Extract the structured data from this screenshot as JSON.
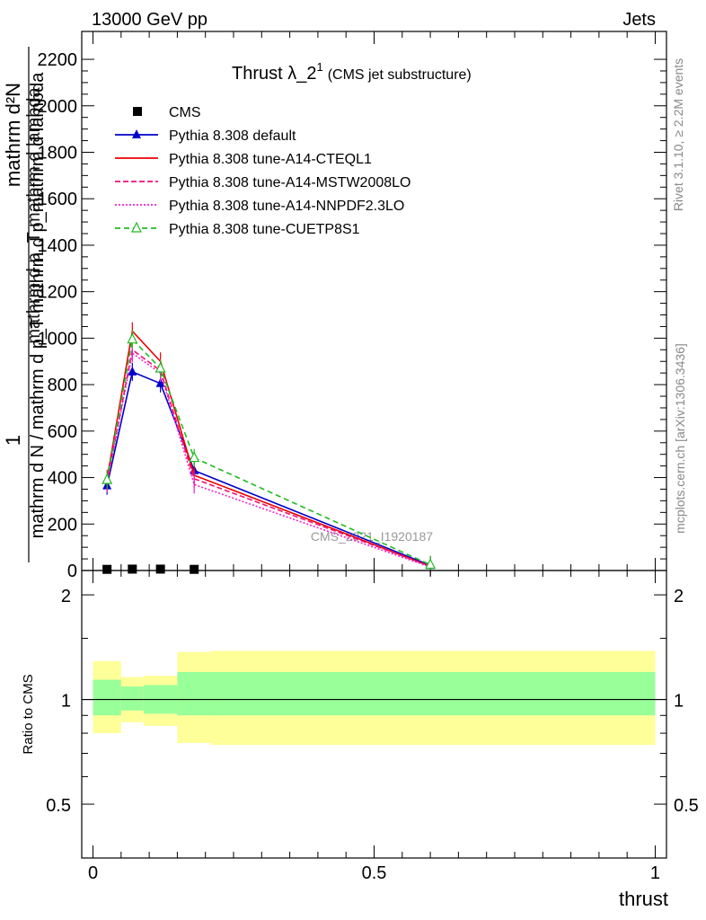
{
  "header": {
    "energy": "13000 GeV pp",
    "process": "Jets"
  },
  "side": {
    "rivet": "Rivet 3.1.10, ≥ 2.2M events",
    "mcplots": "mcplots.cern.ch [arXiv:1306.3436]"
  },
  "chart_data": {
    "type": "line",
    "title_main": "Thrust λ_2",
    "title_sup": "1",
    "title_sub": "(CMS jet substructure)",
    "watermark": "CMS_2021_I1920187",
    "ylabel_top": "1",
    "ylabel_num": "mathrm d²N",
    "ylabel_den": "mathrm d N / mathrm d p_T mathrm d p_mathrm d lambda",
    "ylabel_den_alt": "mathrm d p_T mathrm d lambda",
    "ylabel_ratio": "Ratio to CMS",
    "xlabel": "thrust",
    "xlim": [
      -0.02,
      1.02
    ],
    "ylim": [
      0,
      2320
    ],
    "ratio_ylim": [
      0.35,
      2.35
    ],
    "main_yticks": [
      0,
      200,
      400,
      600,
      800,
      1000,
      1200,
      1400,
      1600,
      1800,
      2000,
      2200
    ],
    "main_ytick_labels": [
      "0",
      "200",
      "400",
      "600",
      "800",
      "1000",
      "1200",
      "1400",
      "1600",
      "1800",
      "2000",
      "2200"
    ],
    "ratio_yticks": [
      0.5,
      1,
      2
    ],
    "ratio_ytick_labels": [
      "0.5",
      "1",
      "2"
    ],
    "xticks": [
      0,
      0.5,
      1
    ],
    "xtick_labels": [
      "0",
      "0.5",
      "1"
    ],
    "data": {
      "name": "CMS",
      "x": [
        0.025,
        0.07,
        0.12,
        0.18
      ],
      "y": [
        5,
        6,
        6,
        5
      ]
    },
    "series": [
      {
        "name": "Pythia 8.308 default",
        "color": "#0000cc",
        "dash": "",
        "marker": "triangle-filled",
        "x": [
          0.025,
          0.07,
          0.12,
          0.18,
          0.6
        ],
        "y": [
          365,
          855,
          805,
          430,
          22
        ]
      },
      {
        "name": "Pythia 8.308 tune-A14-CTEQL1",
        "color": "#ee0000",
        "dash": "",
        "marker": "none",
        "x": [
          0.025,
          0.07,
          0.12,
          0.18,
          0.6
        ],
        "y": [
          395,
          1030,
          900,
          410,
          18
        ]
      },
      {
        "name": "Pythia 8.308 tune-A14-MSTW2008LO",
        "color": "#ee1177",
        "dash": "6,3",
        "marker": "none",
        "x": [
          0.025,
          0.07,
          0.12,
          0.18,
          0.6
        ],
        "y": [
          380,
          950,
          860,
          395,
          18
        ]
      },
      {
        "name": "Pythia 8.308 tune-A14-NNPDF2.3LO",
        "color": "#ee22cc",
        "dash": "2,2",
        "marker": "none",
        "x": [
          0.025,
          0.07,
          0.12,
          0.18,
          0.6
        ],
        "y": [
          375,
          935,
          850,
          370,
          15
        ]
      },
      {
        "name": "Pythia 8.308 tune-CUETP8S1",
        "color": "#22bb22",
        "dash": "6,4",
        "marker": "triangle-open",
        "x": [
          0.025,
          0.07,
          0.12,
          0.18,
          0.6
        ],
        "y": [
          390,
          995,
          870,
          485,
          25
        ]
      }
    ],
    "ratio_bands": [
      {
        "xlo": 0.0,
        "xhi": 0.05,
        "inner": [
          0.9,
          1.14
        ],
        "outer": [
          0.8,
          1.29
        ]
      },
      {
        "xlo": 0.05,
        "xhi": 0.09,
        "inner": [
          0.93,
          1.09
        ],
        "outer": [
          0.86,
          1.16
        ]
      },
      {
        "xlo": 0.09,
        "xhi": 0.15,
        "inner": [
          0.91,
          1.1
        ],
        "outer": [
          0.84,
          1.17
        ]
      },
      {
        "xlo": 0.15,
        "xhi": 0.21,
        "inner": [
          0.9,
          1.2
        ],
        "outer": [
          0.75,
          1.37
        ]
      },
      {
        "xlo": 0.21,
        "xhi": 1.0,
        "inner": [
          0.9,
          1.2
        ],
        "outer": [
          0.74,
          1.38
        ]
      }
    ],
    "band_colors": {
      "inner": "#99ff99",
      "outer": "#ffff99"
    }
  }
}
